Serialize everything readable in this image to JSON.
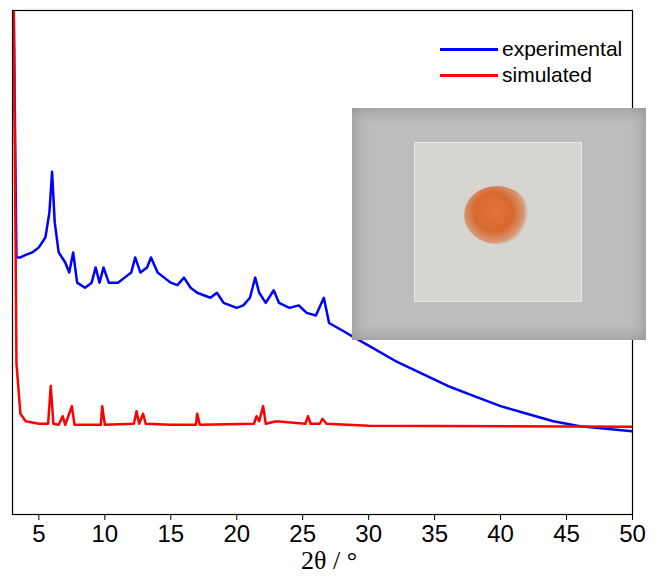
{
  "chart_data": {
    "type": "line",
    "x_label": "2θ / °",
    "xlim": [
      3,
      50
    ],
    "xticks": [
      5,
      10,
      15,
      20,
      25,
      30,
      35,
      40,
      45,
      50
    ],
    "ylim": [
      0,
      100
    ],
    "tick_labels": "x",
    "legend": "top-right",
    "series": [
      {
        "name": "experimental",
        "color": "#0000ff",
        "x": [
          3.1,
          3.3,
          3.6,
          4.0,
          4.5,
          5.0,
          5.5,
          5.8,
          6.0,
          6.2,
          6.5,
          7.0,
          7.3,
          7.6,
          7.9,
          8.5,
          9.0,
          9.3,
          9.6,
          9.9,
          10.3,
          11.0,
          11.5,
          12.0,
          12.3,
          12.7,
          13.2,
          13.5,
          14.0,
          14.5,
          15.0,
          15.5,
          16.0,
          16.5,
          17.0,
          17.5,
          18.0,
          18.5,
          19.0,
          19.5,
          20.0,
          20.5,
          21.0,
          21.4,
          21.7,
          22.2,
          22.8,
          23.2,
          24.0,
          24.7,
          25.3,
          26.0,
          26.6,
          27.0,
          28.0,
          29.0,
          30.0,
          32.0,
          34.0,
          36.0,
          38.0,
          40.0,
          42.0,
          44.0,
          46.0,
          48.0,
          50.0
        ],
        "values": [
          98,
          51,
          51,
          51.5,
          52,
          53,
          55,
          60,
          68,
          58,
          52,
          50,
          48,
          52,
          46,
          45,
          46,
          49,
          46,
          49,
          46,
          46,
          47,
          48,
          51,
          48,
          49,
          51,
          48,
          47,
          46,
          45.5,
          47,
          45,
          44,
          43.5,
          43,
          44,
          42,
          41.5,
          41,
          41.5,
          43,
          47,
          44,
          42,
          44.5,
          42,
          41,
          41.5,
          40,
          39.5,
          43,
          38,
          36.5,
          35,
          33.5,
          30.5,
          28,
          25.5,
          23.5,
          21.5,
          20,
          18.5,
          17.5,
          17,
          16.5
        ]
      },
      {
        "name": "simulated",
        "color": "#ff0000",
        "x": [
          3.1,
          3.3,
          3.6,
          4.0,
          5.0,
          5.7,
          5.9,
          6.1,
          6.5,
          6.8,
          7.0,
          7.5,
          7.7,
          9.7,
          9.8,
          10.0,
          12.2,
          12.4,
          12.6,
          12.9,
          13.1,
          15.0,
          16.9,
          17.0,
          17.2,
          21.3,
          21.5,
          21.7,
          22.0,
          22.2,
          23.0,
          25.2,
          25.4,
          25.6,
          26.3,
          26.5,
          26.8,
          30.0,
          50.0
        ],
        "values": [
          100,
          30,
          20,
          18.5,
          18,
          18,
          25.5,
          18,
          17.8,
          19.5,
          17.8,
          21.5,
          17.8,
          17.8,
          21.5,
          17.8,
          18,
          20.5,
          18,
          20,
          18,
          17.8,
          17.8,
          20,
          17.8,
          18,
          19.5,
          18.5,
          21.5,
          18,
          18.5,
          18,
          19.5,
          18,
          18,
          19,
          18,
          17.6,
          17.4
        ]
      }
    ]
  }
}
